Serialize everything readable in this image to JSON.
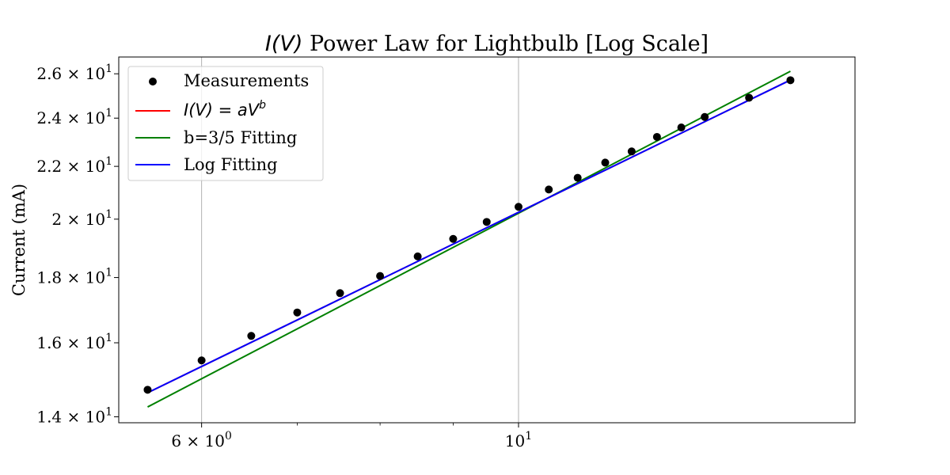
{
  "chart_data": {
    "type": "scatter",
    "title_parts": {
      "math": "I(V)",
      "rest": " Power Law for Lightbulb [Log Scale]"
    },
    "xlabel": "",
    "ylabel": "Current (mA)",
    "x_scale": "log",
    "y_scale": "log",
    "xlim": [
      5.25,
      17.2
    ],
    "ylim": [
      13.85,
      26.8
    ],
    "x_ticks": [
      {
        "value": 6,
        "mantissa": "6",
        "exponent": "0"
      },
      {
        "value": 10,
        "mantissa": "",
        "exponent": "1"
      }
    ],
    "x_minor_ticks": [
      7,
      8,
      9
    ],
    "y_ticks": [
      {
        "value": 14,
        "mantissa": "1.4",
        "exponent": "1"
      },
      {
        "value": 16,
        "mantissa": "1.6",
        "exponent": "1"
      },
      {
        "value": 18,
        "mantissa": "1.8",
        "exponent": "1"
      },
      {
        "value": 20,
        "mantissa": "2",
        "exponent": "1"
      },
      {
        "value": 22,
        "mantissa": "2.2",
        "exponent": "1"
      },
      {
        "value": 24,
        "mantissa": "2.4",
        "exponent": "1"
      },
      {
        "value": 26,
        "mantissa": "2.6",
        "exponent": "1"
      }
    ],
    "grid": {
      "x_major": true,
      "y": false
    },
    "legend_position": "top-left",
    "legend": [
      {
        "kind": "marker",
        "label": "Measurements",
        "color": "#000000"
      },
      {
        "kind": "line",
        "label_math": "I(V) = aV^b",
        "label_math_base": "I(V) = aV",
        "label_math_sup": "b",
        "color": "#ff0000"
      },
      {
        "kind": "line",
        "label": "b=3/5 Fitting",
        "color": "#008000"
      },
      {
        "kind": "line",
        "label": "Log Fitting",
        "color": "#0000ff"
      }
    ],
    "series": [
      {
        "name": "Measurements",
        "kind": "scatter",
        "color": "#000000",
        "x": [
          5.5,
          6.0,
          6.5,
          7.0,
          7.5,
          8.0,
          8.5,
          9.0,
          9.5,
          10.0,
          10.5,
          11.0,
          11.5,
          12.0,
          12.5,
          13.0,
          13.5,
          14.5,
          15.5
        ],
        "y": [
          14.7,
          15.5,
          16.2,
          16.9,
          17.5,
          18.05,
          18.7,
          19.3,
          19.9,
          20.45,
          21.1,
          21.55,
          22.15,
          22.6,
          23.2,
          23.6,
          24.05,
          24.9,
          25.7
        ]
      },
      {
        "name": "I(V) = aV^b",
        "kind": "line",
        "color": "#ff0000",
        "x": [
          5.5,
          15.5
        ],
        "y": [
          14.62,
          25.71
        ]
      },
      {
        "name": "b=3/5 Fitting",
        "kind": "line",
        "color": "#008000",
        "x": [
          5.5,
          15.5
        ],
        "y": [
          14.25,
          26.12
        ]
      },
      {
        "name": "Log Fitting",
        "kind": "line",
        "color": "#0000ff",
        "x": [
          5.5,
          15.5
        ],
        "y": [
          14.62,
          25.71
        ]
      }
    ]
  }
}
